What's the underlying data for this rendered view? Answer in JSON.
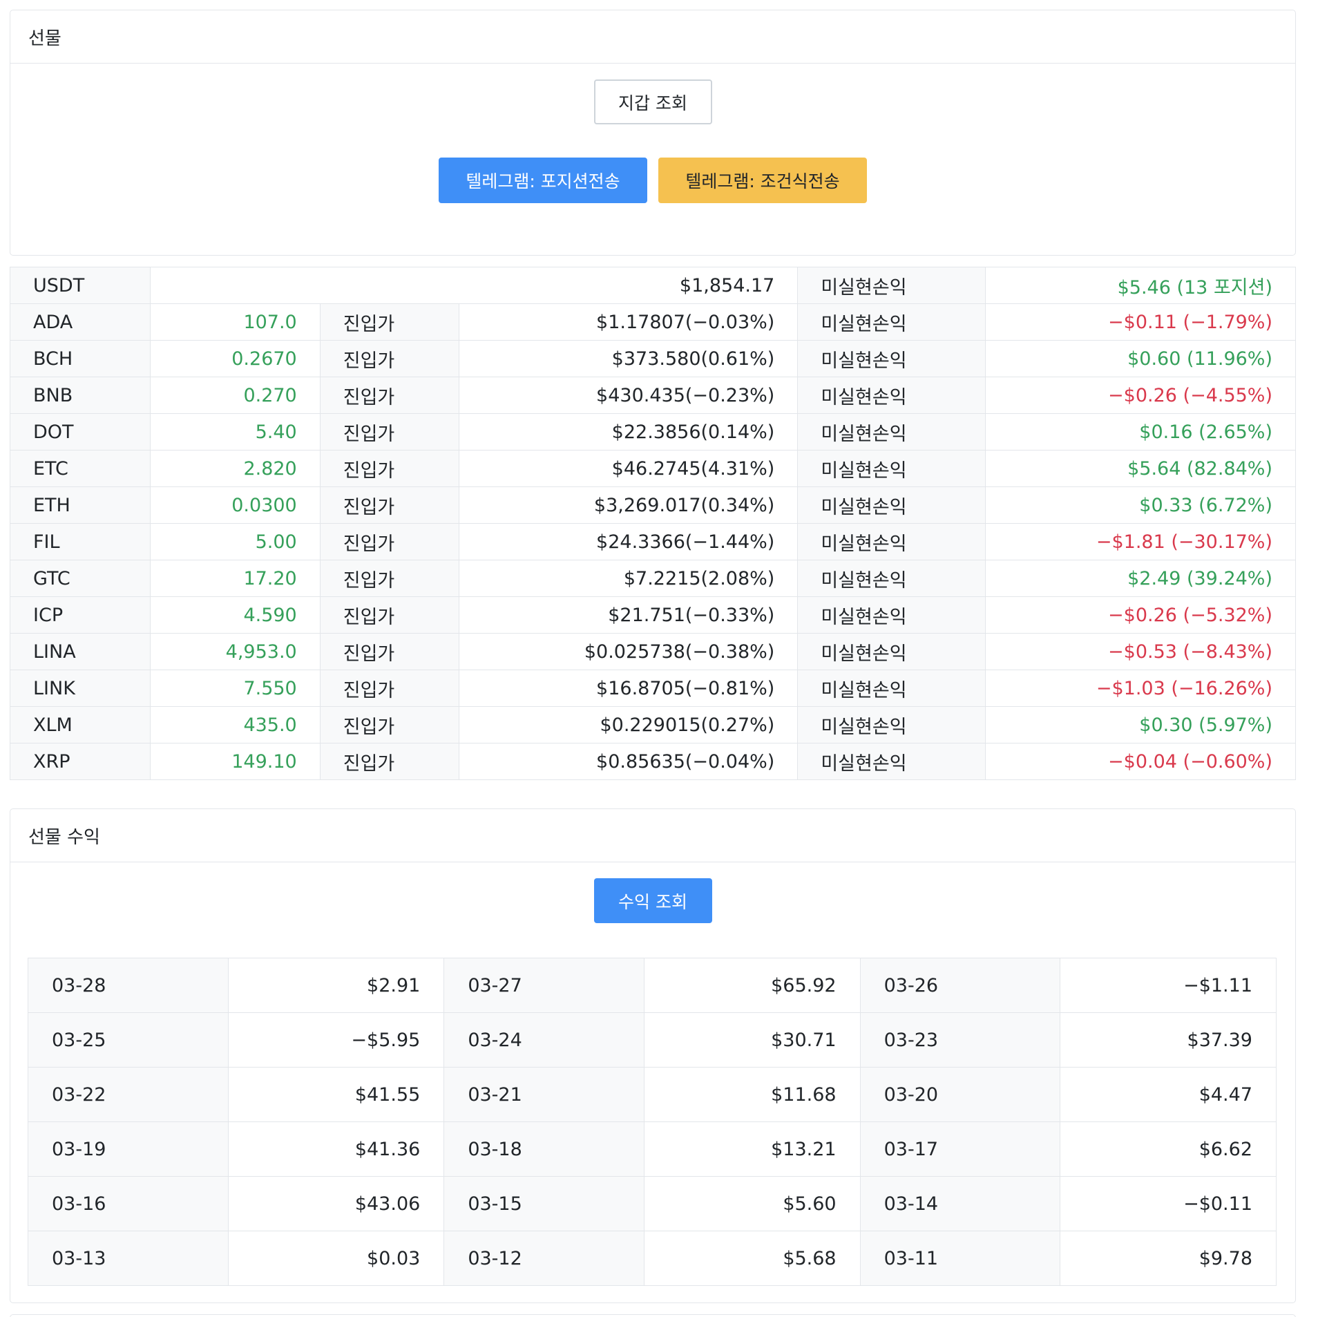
{
  "futures": {
    "title": "선물",
    "wallet_button": "지갑 조회",
    "telegram_position_button": "텔레그램: 포지션전송",
    "telegram_condition_button": "텔레그램: 조건식전송"
  },
  "summary": {
    "asset": "USDT",
    "balance": "$1,854.17",
    "pnl_label": "미실현손익",
    "pnl": "$5.46 (13 포지션)"
  },
  "positions": [
    {
      "symbol": "ADA",
      "qty": "107.0",
      "entry_label": "진입가",
      "entry": "$1.17807(−0.03%)",
      "pnl_label": "미실현손익",
      "pnl": "−$0.11 (−1.79%)",
      "positive": false
    },
    {
      "symbol": "BCH",
      "qty": "0.2670",
      "entry_label": "진입가",
      "entry": "$373.580(0.61%)",
      "pnl_label": "미실현손익",
      "pnl": "$0.60 (11.96%)",
      "positive": true
    },
    {
      "symbol": "BNB",
      "qty": "0.270",
      "entry_label": "진입가",
      "entry": "$430.435(−0.23%)",
      "pnl_label": "미실현손익",
      "pnl": "−$0.26 (−4.55%)",
      "positive": false
    },
    {
      "symbol": "DOT",
      "qty": "5.40",
      "entry_label": "진입가",
      "entry": "$22.3856(0.14%)",
      "pnl_label": "미실현손익",
      "pnl": "$0.16 (2.65%)",
      "positive": true
    },
    {
      "symbol": "ETC",
      "qty": "2.820",
      "entry_label": "진입가",
      "entry": "$46.2745(4.31%)",
      "pnl_label": "미실현손익",
      "pnl": "$5.64 (82.84%)",
      "positive": true
    },
    {
      "symbol": "ETH",
      "qty": "0.0300",
      "entry_label": "진입가",
      "entry": "$3,269.017(0.34%)",
      "pnl_label": "미실현손익",
      "pnl": "$0.33 (6.72%)",
      "positive": true
    },
    {
      "symbol": "FIL",
      "qty": "5.00",
      "entry_label": "진입가",
      "entry": "$24.3366(−1.44%)",
      "pnl_label": "미실현손익",
      "pnl": "−$1.81 (−30.17%)",
      "positive": false
    },
    {
      "symbol": "GTC",
      "qty": "17.20",
      "entry_label": "진입가",
      "entry": "$7.2215(2.08%)",
      "pnl_label": "미실현손익",
      "pnl": "$2.49 (39.24%)",
      "positive": true
    },
    {
      "symbol": "ICP",
      "qty": "4.590",
      "entry_label": "진입가",
      "entry": "$21.751(−0.33%)",
      "pnl_label": "미실현손익",
      "pnl": "−$0.26 (−5.32%)",
      "positive": false
    },
    {
      "symbol": "LINA",
      "qty": "4,953.0",
      "entry_label": "진입가",
      "entry": "$0.025738(−0.38%)",
      "pnl_label": "미실현손익",
      "pnl": "−$0.53 (−8.43%)",
      "positive": false
    },
    {
      "symbol": "LINK",
      "qty": "7.550",
      "entry_label": "진입가",
      "entry": "$16.8705(−0.81%)",
      "pnl_label": "미실현손익",
      "pnl": "−$1.03 (−16.26%)",
      "positive": false
    },
    {
      "symbol": "XLM",
      "qty": "435.0",
      "entry_label": "진입가",
      "entry": "$0.229015(0.27%)",
      "pnl_label": "미실현손익",
      "pnl": "$0.30 (5.97%)",
      "positive": true
    },
    {
      "symbol": "XRP",
      "qty": "149.10",
      "entry_label": "진입가",
      "entry": "$0.85635(−0.04%)",
      "pnl_label": "미실현손익",
      "pnl": "−$0.04 (−0.60%)",
      "positive": false
    }
  ],
  "profit": {
    "title": "선물 수익",
    "button": "수익 조회",
    "days": [
      {
        "date": "03-28",
        "value": "$2.91"
      },
      {
        "date": "03-27",
        "value": "$65.92"
      },
      {
        "date": "03-26",
        "value": "−$1.11"
      },
      {
        "date": "03-25",
        "value": "−$5.95"
      },
      {
        "date": "03-24",
        "value": "$30.71"
      },
      {
        "date": "03-23",
        "value": "$37.39"
      },
      {
        "date": "03-22",
        "value": "$41.55"
      },
      {
        "date": "03-21",
        "value": "$11.68"
      },
      {
        "date": "03-20",
        "value": "$4.47"
      },
      {
        "date": "03-19",
        "value": "$41.36"
      },
      {
        "date": "03-18",
        "value": "$13.21"
      },
      {
        "date": "03-17",
        "value": "$6.62"
      },
      {
        "date": "03-16",
        "value": "$43.06"
      },
      {
        "date": "03-15",
        "value": "$5.60"
      },
      {
        "date": "03-14",
        "value": "−$0.11"
      },
      {
        "date": "03-13",
        "value": "$0.03"
      },
      {
        "date": "03-12",
        "value": "$5.68"
      },
      {
        "date": "03-11",
        "value": "$9.78"
      }
    ]
  },
  "colors": {
    "positive": "#35a05a",
    "negative": "#d9394c",
    "primary": "#3f8ff7",
    "warning": "#f5c150"
  }
}
